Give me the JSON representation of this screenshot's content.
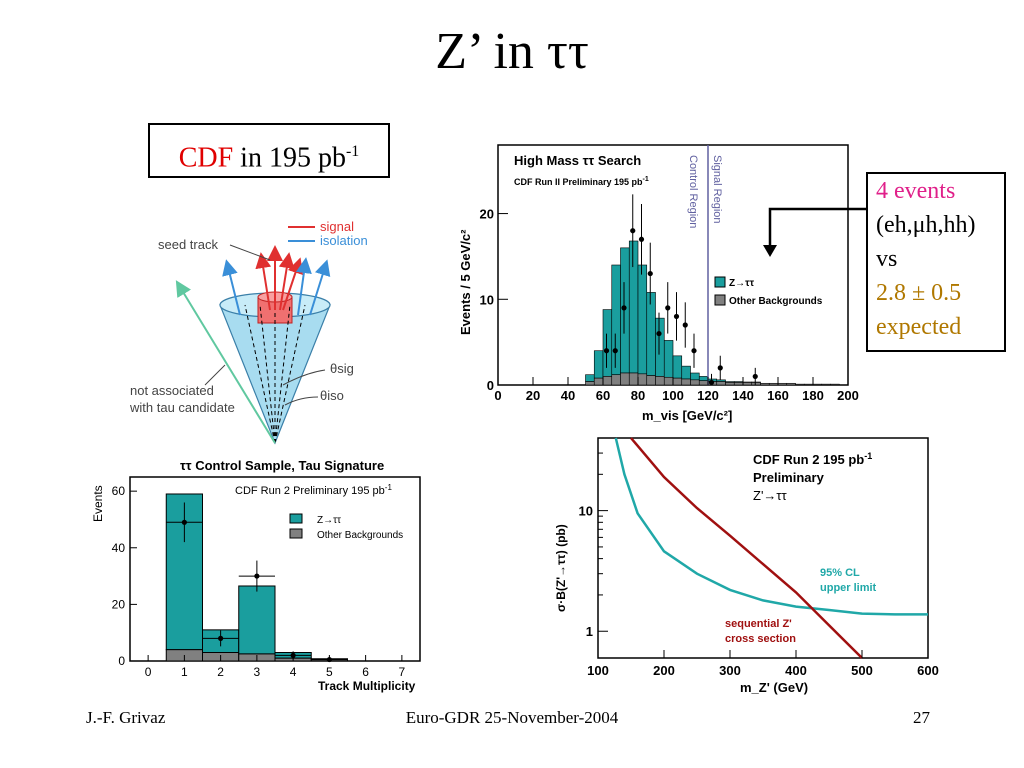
{
  "slide": {
    "title": "Z’ in ττ",
    "cdf_label": "CDF",
    "cdf_rest": "in 195 pb",
    "cdf_sup": "-1",
    "events_box": {
      "line1": "4 events",
      "line2": "(eh,μh,hh)",
      "line3": "vs",
      "line4": "2.8 ± 0.5",
      "line5": "expected"
    },
    "footer": {
      "left": "J.-F. Grivaz",
      "center": "Euro-GDR 25-November-2004",
      "right": "27"
    }
  },
  "diagram": {
    "signal": "signal",
    "isolation": "isolation",
    "seed_track": "seed track",
    "theta_sig": "θsig",
    "theta_iso": "θiso",
    "not_assoc_1": "not associated",
    "not_assoc_2": "with tau candidate",
    "colors": {
      "signal": "#e03030",
      "isolation": "#3a8fd8",
      "cone": "#a8dcf0",
      "stray": "#60c8a0"
    }
  },
  "colors": {
    "teal": "#1a9e9e",
    "gray": "#808080",
    "dark_red": "#a01010",
    "limit": "#20a8a8",
    "region_line": "#6060a0"
  },
  "chart_data": [
    {
      "type": "bar",
      "title": "High Mass ττ Search",
      "subtitle": "CDF Run II Preliminary 195 pb",
      "subtitle_sup": "-1",
      "xlabel": "m_vis [GeV/c²]",
      "ylabel": "Events / 5 GeV/c²",
      "xlim": [
        0,
        200
      ],
      "ylim": [
        0,
        28
      ],
      "x_ticks": [
        "0",
        "20",
        "40",
        "60",
        "80",
        "100",
        "120",
        "140",
        "160",
        "180",
        "200"
      ],
      "y_ticks": [
        "0",
        "10",
        "20"
      ],
      "region_labels": [
        "Control Region",
        "Signal Region"
      ],
      "region_boundary": 120,
      "bin_width": 5,
      "bin_starts": [
        50,
        55,
        60,
        65,
        70,
        75,
        80,
        85,
        90,
        95,
        100,
        105,
        110,
        115,
        120,
        125,
        130,
        135,
        140,
        145,
        150,
        155,
        160,
        165,
        170,
        175,
        180,
        185,
        190
      ],
      "series": [
        {
          "name": "Other Backgrounds",
          "values": [
            0.4,
            0.8,
            1.0,
            1.2,
            1.4,
            1.4,
            1.3,
            1.1,
            1.0,
            0.9,
            0.8,
            0.7,
            0.6,
            0.5,
            0.4,
            0.4,
            0.3,
            0.3,
            0.3,
            0.3,
            0.2,
            0.2,
            0.2,
            0.2,
            0.1,
            0.1,
            0.1,
            0.1,
            0.1
          ]
        },
        {
          "name": "Z→ττ",
          "values": [
            0.8,
            3.2,
            7.8,
            12.8,
            14.6,
            15.4,
            12.7,
            9.7,
            6.8,
            4.3,
            2.6,
            1.5,
            0.8,
            0.5,
            0.3,
            0.2,
            0.1,
            0.1,
            0.05,
            0.05,
            0,
            0,
            0,
            0,
            0,
            0,
            0,
            0,
            0
          ]
        }
      ],
      "data_points": [
        {
          "x": 62,
          "y": 4
        },
        {
          "x": 67,
          "y": 4
        },
        {
          "x": 72,
          "y": 9
        },
        {
          "x": 77,
          "y": 18
        },
        {
          "x": 82,
          "y": 17
        },
        {
          "x": 87,
          "y": 13
        },
        {
          "x": 92,
          "y": 6
        },
        {
          "x": 97,
          "y": 9
        },
        {
          "x": 102,
          "y": 8
        },
        {
          "x": 107,
          "y": 7
        },
        {
          "x": 112,
          "y": 4
        },
        {
          "x": 122,
          "y": 0.3
        },
        {
          "x": 127,
          "y": 2
        },
        {
          "x": 147,
          "y": 1
        }
      ]
    },
    {
      "type": "bar",
      "title": "ττ Control Sample, Tau Signature",
      "subtitle": "CDF Run 2 Preliminary 195 pb",
      "subtitle_sup": "-1",
      "xlabel": "Track Multiplicity",
      "ylabel": "Events",
      "xlim": [
        -0.5,
        7.5
      ],
      "ylim": [
        0,
        65
      ],
      "x_ticks": [
        "0",
        "1",
        "2",
        "3",
        "4",
        "5",
        "6",
        "7"
      ],
      "y_ticks": [
        "0",
        "20",
        "40",
        "60"
      ],
      "categories": [
        "1",
        "2",
        "3",
        "4",
        "5"
      ],
      "series": [
        {
          "name": "Other Backgrounds",
          "values": [
            4,
            3,
            2.5,
            1,
            0.5
          ]
        },
        {
          "name": "Z→ττ",
          "values": [
            55,
            8,
            24,
            2,
            0.3
          ]
        }
      ],
      "data_points": [
        {
          "x": 1,
          "y": 49
        },
        {
          "x": 2,
          "y": 8
        },
        {
          "x": 3,
          "y": 30
        },
        {
          "x": 4,
          "y": 2
        },
        {
          "x": 5,
          "y": 0.5
        }
      ]
    },
    {
      "type": "line",
      "title": "CDF Run 2  195 pb",
      "title_sup": "-1",
      "subtitle": "Preliminary",
      "label3": "Z'→ττ",
      "xlabel": "m_Z' (GeV)",
      "ylabel": "σ·B(Z'→ττ)  (pb)",
      "xlim": [
        100,
        600
      ],
      "ylim": [
        0.6,
        40
      ],
      "yscale": "log",
      "x_ticks": [
        "100",
        "200",
        "300",
        "400",
        "500",
        "600"
      ],
      "y_ticks": [
        "1",
        "10"
      ],
      "series": [
        {
          "name": "95% CL upper limit",
          "x": [
            127,
            140,
            160,
            200,
            250,
            300,
            350,
            400,
            450,
            500,
            550,
            600
          ],
          "y": [
            40,
            20,
            9.5,
            4.6,
            3.0,
            2.2,
            1.8,
            1.6,
            1.5,
            1.4,
            1.38,
            1.38
          ]
        },
        {
          "name": "sequential Z' cross section",
          "x": [
            150,
            200,
            250,
            300,
            350,
            400,
            450,
            500
          ],
          "y": [
            40,
            19,
            10.5,
            6.2,
            3.6,
            2.1,
            1.12,
            0.6
          ]
        }
      ],
      "labels": [
        "95% CL",
        "upper limit",
        "sequential Z'",
        "cross section"
      ]
    }
  ]
}
